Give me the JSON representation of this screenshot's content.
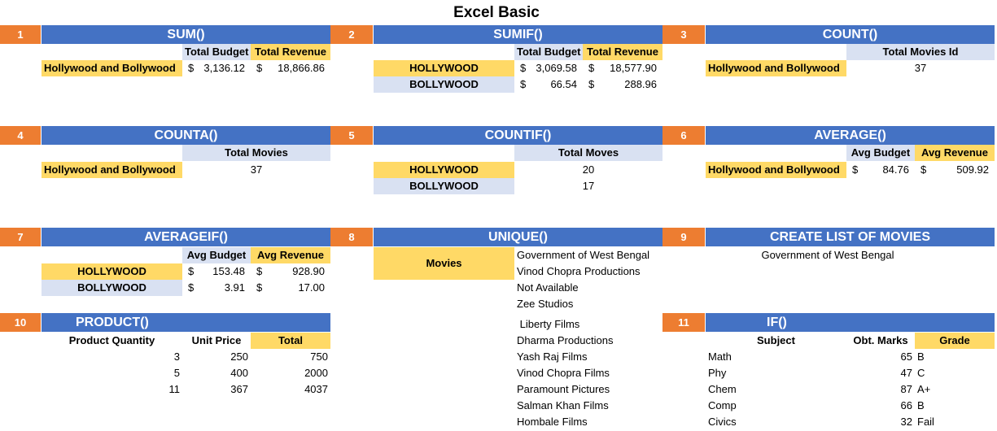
{
  "title": "Excel Basic",
  "labels": {
    "hb": "Hollywood and Bollywood",
    "hollywood": "HOLLYWOOD",
    "bollywood": "BOLLYWOOD",
    "dollar": "$"
  },
  "s1": {
    "num": "1",
    "title": "SUM()",
    "h1": "Total Budget",
    "h2": "Total Revenue",
    "budget": "3,136.12",
    "revenue": "18,866.86"
  },
  "s2": {
    "num": "2",
    "title": "SUMIF()",
    "h1": "Total Budget",
    "h2": "Total Revenue",
    "rows": [
      {
        "budget": "3,069.58",
        "revenue": "18,577.90"
      },
      {
        "budget": "66.54",
        "revenue": "288.96"
      }
    ]
  },
  "s3": {
    "num": "3",
    "title": "COUNT()",
    "h1": "Total Movies Id",
    "value": "37"
  },
  "s4": {
    "num": "4",
    "title": "COUNTA()",
    "h1": "Total Movies",
    "value": "37"
  },
  "s5": {
    "num": "5",
    "title": "COUNTIF()",
    "h1": "Total Moves",
    "values": [
      "20",
      "17"
    ]
  },
  "s6": {
    "num": "6",
    "title": "AVERAGE()",
    "h1": "Avg Budget",
    "h2": "Avg Revenue",
    "budget": "84.76",
    "revenue": "509.92"
  },
  "s7": {
    "num": "7",
    "title": "AVERAGEIF()",
    "h1": "Avg Budget",
    "h2": "Avg Revenue",
    "rows": [
      {
        "budget": "153.48",
        "revenue": "928.90"
      },
      {
        "budget": "3.91",
        "revenue": "17.00"
      }
    ]
  },
  "s8": {
    "num": "8",
    "title": "UNIQUE()",
    "label": "Movies",
    "items": [
      "Government of West Bengal",
      "Vinod Chopra Productions",
      "Not Available",
      "Zee Studios",
      " Liberty Films",
      "Dharma Productions",
      "Yash Raj Films",
      "Vinod Chopra Films",
      "Paramount Pictures",
      "Salman Khan Films",
      "Hombale Films"
    ]
  },
  "s9": {
    "num": "9",
    "title": "CREATE LIST OF MOVIES",
    "value": "Government of West Bengal"
  },
  "s10": {
    "num": "10",
    "title": "PRODUCT()",
    "h1": "Product Quantity",
    "h2": "Unit Price",
    "h3": "Total",
    "rows": [
      {
        "q": "3",
        "p": "250",
        "t": "750"
      },
      {
        "q": "5",
        "p": "400",
        "t": "2000"
      },
      {
        "q": "11",
        "p": "367",
        "t": "4037"
      }
    ]
  },
  "s11": {
    "num": "11",
    "title": "IF()",
    "h1": "Subject",
    "h2": "Obt. Marks",
    "h3": "Grade",
    "rows": [
      {
        "s": "Math",
        "m": "65",
        "g": "B"
      },
      {
        "s": "Phy",
        "m": "47",
        "g": "C"
      },
      {
        "s": "Chem",
        "m": "87",
        "g": "A+"
      },
      {
        "s": "Comp",
        "m": "66",
        "g": "B"
      },
      {
        "s": "Civics",
        "m": "32",
        "g": "Fail"
      }
    ]
  }
}
